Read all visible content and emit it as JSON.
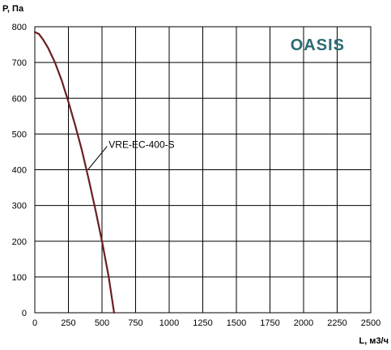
{
  "brand": {
    "text": "OASIS",
    "color": "#2b6b73"
  },
  "chart_data": {
    "type": "line",
    "title": "",
    "xlabel": "L, м3/ч",
    "ylabel": "P, Па",
    "xlim": [
      0,
      2500
    ],
    "ylim": [
      0,
      800
    ],
    "x_ticks": [
      0,
      250,
      500,
      750,
      1000,
      1250,
      1500,
      1750,
      2000,
      2250,
      2500
    ],
    "y_ticks": [
      0,
      100,
      200,
      300,
      400,
      500,
      600,
      700,
      800
    ],
    "x_tick_labels": [
      "0",
      "250",
      "500",
      "750",
      "1000",
      "1250",
      "1500",
      "1750",
      "2000",
      "2250",
      "2500"
    ],
    "y_tick_labels": [
      "0",
      "100",
      "200",
      "300",
      "400",
      "500",
      "600",
      "700",
      "800"
    ],
    "grid": true,
    "series": [
      {
        "name": "VRE-EC-400-S",
        "color": "#6b1f1f",
        "x": [
          0,
          30,
          60,
          100,
          150,
          200,
          250,
          300,
          350,
          400,
          450,
          500,
          550,
          590
        ],
        "y": [
          785,
          780,
          765,
          740,
          700,
          650,
          590,
          525,
          455,
          375,
          290,
          200,
          100,
          0
        ]
      }
    ],
    "annotations": [
      {
        "text": "VRE-EC-400-S",
        "x": 550,
        "y": 470,
        "point_x": 395,
        "point_y": 400
      }
    ]
  }
}
